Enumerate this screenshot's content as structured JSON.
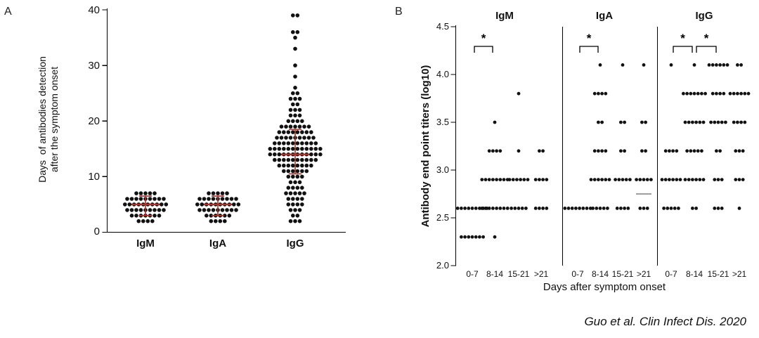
{
  "page": {
    "caption": "Guo et al. Clin Infect Dis. 2020"
  },
  "chart_data": [
    {
      "panel": "A",
      "type": "scatter",
      "subtype": "dot-plot-with-median-error-bars",
      "ylabel_line1": "Days  of antibodies detection",
      "ylabel_line2": "after the symptom onset",
      "ylim": [
        0,
        40
      ],
      "yticks": [
        "0",
        "10",
        "20",
        "30",
        "40"
      ],
      "dot_color": "#111111",
      "error_bar_color": "#a5342c",
      "grid": false,
      "groups": [
        {
          "label": "IgM",
          "median": 5,
          "whisker_low": 3,
          "whisker_high": 6.5,
          "points": {
            "2": 4,
            "3": 7,
            "4": 9,
            "5": 10,
            "6": 9,
            "7": 5
          }
        },
        {
          "label": "IgA",
          "median": 5,
          "whisker_low": 3,
          "whisker_high": 6.5,
          "points": {
            "2": 4,
            "3": 6,
            "4": 9,
            "5": 10,
            "6": 9,
            "7": 5
          }
        },
        {
          "label": "IgG",
          "median": 14,
          "whisker_low": 10.5,
          "whisker_high": 18.5,
          "points": {
            "2": 3,
            "3": 2,
            "4": 3,
            "5": 4,
            "6": 4,
            "7": 5,
            "8": 4,
            "9": 3,
            "10": 4,
            "11": 6,
            "12": 8,
            "13": 10,
            "14": 12,
            "15": 12,
            "16": 10,
            "17": 9,
            "18": 8,
            "19": 7,
            "20": 4,
            "21": 3,
            "22": 3,
            "23": 2,
            "24": 3,
            "25": 2,
            "26": 1,
            "28": 1,
            "30": 1,
            "33": 1,
            "35": 1,
            "36": 2,
            "39": 2
          }
        }
      ]
    },
    {
      "panel": "B",
      "type": "scatter",
      "subtype": "dot-plot",
      "ylabel": "Antibody end point titers (log10)",
      "xlabel": "Days after symptom onset",
      "ylim": [
        2.0,
        4.5
      ],
      "yticks": [
        "2.0",
        "2.5",
        "3.0",
        "3.5",
        "4.0",
        "4.5"
      ],
      "dot_color": "#111111",
      "grid": false,
      "subpanels": [
        {
          "title": "IgM",
          "significance": [
            {
              "from": 0,
              "to": 1,
              "label": "*"
            }
          ],
          "groups": [
            {
              "label": "0-7",
              "points": {
                "2.3": 7,
                "2.6": 9
              }
            },
            {
              "label": "8-14",
              "points": {
                "2.3": 1,
                "2.6": 8,
                "2.9": 8,
                "3.2": 4,
                "3.5": 1
              }
            },
            {
              "label": "15-21",
              "points": {
                "2.6": 5,
                "2.9": 6,
                "3.2": 1,
                "3.8": 1
              }
            },
            {
              "label": ">21",
              "points": {
                "2.6": 4,
                "2.9": 4,
                "3.2": 2
              }
            }
          ]
        },
        {
          "title": "IgA",
          "significance": [
            {
              "from": 0,
              "to": 1,
              "label": "*"
            }
          ],
          "groups": [
            {
              "label": "0-7",
              "points": {
                "2.6": 8
              }
            },
            {
              "label": "8-14",
              "points": {
                "2.6": 5,
                "2.9": 6,
                "3.2": 4,
                "3.5": 2,
                "3.8": 4,
                "4.1": 1
              }
            },
            {
              "label": "15-21",
              "points": {
                "2.6": 4,
                "2.9": 5,
                "3.2": 2,
                "3.5": 2,
                "4.1": 1
              }
            },
            {
              "label": ">21",
              "points": {
                "2.6": 3,
                "2.9": 5,
                "3.2": 2,
                "3.5": 2,
                "4.1": 1
              },
              "median_line": 2.75
            }
          ]
        },
        {
          "title": "IgG",
          "significance": [
            {
              "from": 0,
              "to": 1,
              "label": "*"
            },
            {
              "from": 1,
              "to": 2,
              "label": "*"
            }
          ],
          "groups": [
            {
              "label": "0-7",
              "points": {
                "2.6": 5,
                "2.9": 6,
                "3.2": 4,
                "4.1": 1
              }
            },
            {
              "label": "8-14",
              "points": {
                "2.6": 2,
                "2.9": 6,
                "3.2": 5,
                "3.5": 6,
                "3.8": 7,
                "4.1": 1
              }
            },
            {
              "label": "15-21",
              "points": {
                "2.6": 3,
                "2.9": 3,
                "3.2": 2,
                "3.5": 5,
                "3.8": 4,
                "4.1": 6
              }
            },
            {
              "label": ">21",
              "points": {
                "2.6": 1,
                "2.9": 3,
                "3.2": 3,
                "3.5": 4,
                "3.8": 6,
                "4.1": 2
              }
            }
          ]
        }
      ]
    }
  ]
}
